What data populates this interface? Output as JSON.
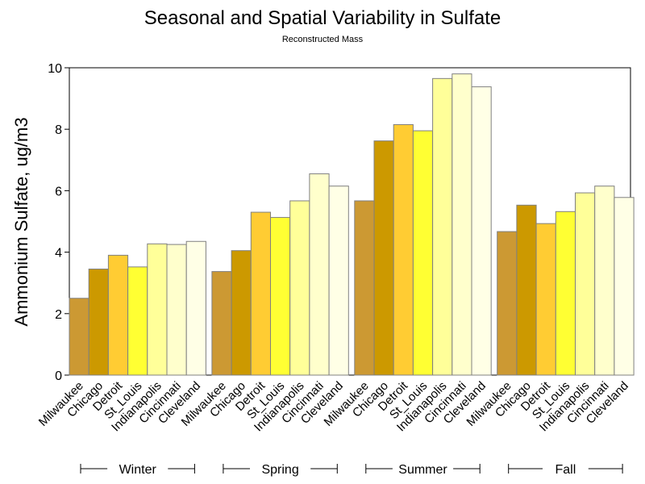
{
  "chart_data": {
    "type": "bar",
    "title": "Seasonal and Spatial Variability in Sulfate",
    "subtitle": "Reconstructed Mass",
    "xlabel": "",
    "ylabel": "Ammonium Sulfate, ug/m3",
    "ylim": [
      0,
      10
    ],
    "yticks": [
      0,
      2,
      4,
      6,
      8,
      10
    ],
    "grid": false,
    "groups": [
      {
        "name": "Winter",
        "categories": [
          "Milwaukee",
          "Chicago",
          "Detroit",
          "St_Louis",
          "Indianapolis",
          "Cincinnati",
          "Cleveland"
        ],
        "values": [
          2.5,
          3.45,
          3.9,
          3.52,
          4.27,
          4.25,
          4.35
        ]
      },
      {
        "name": "Spring",
        "categories": [
          "Milwaukee",
          "Chicago",
          "Detroit",
          "St_Louis",
          "Indianapolis",
          "Cincinnati",
          "Cleveland"
        ],
        "values": [
          3.37,
          4.05,
          5.3,
          5.13,
          5.67,
          6.55,
          6.15
        ]
      },
      {
        "name": "Summer",
        "categories": [
          "Milwaukee",
          "Chicago",
          "Detroit",
          "St_Louis",
          "Indianapolis",
          "Cincinnati",
          "Cleveland"
        ],
        "values": [
          5.67,
          7.62,
          8.15,
          7.95,
          9.65,
          9.8,
          9.38
        ]
      },
      {
        "name": "Fall",
        "categories": [
          "Milwaukee",
          "Chicago",
          "Detroit",
          "St_Louis",
          "Indianapolis",
          "Cincinnati",
          "Cleveland"
        ],
        "values": [
          4.67,
          5.53,
          4.93,
          5.32,
          5.93,
          6.15,
          5.78
        ]
      }
    ],
    "colors": {
      "Milwaukee": "#cc9933",
      "Chicago": "#cc9900",
      "Detroit": "#ffcc33",
      "St_Louis": "#ffff33",
      "Indianapolis": "#ffff99",
      "Cincinnati": "#ffffcc",
      "Cleveland": "#ffffe6"
    },
    "bar_outline": "#808080"
  }
}
